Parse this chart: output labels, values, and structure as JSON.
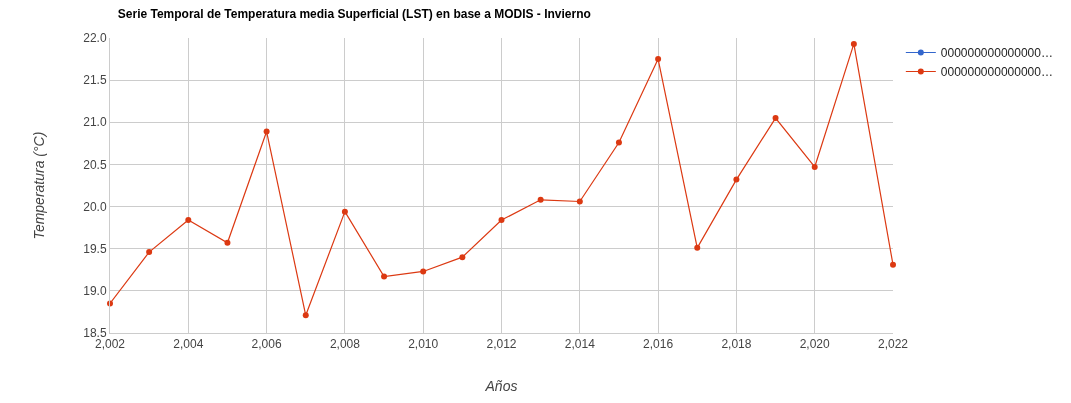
{
  "chart_data": {
    "type": "line",
    "title": "Serie Temporal de Temperatura media Superficial (LST) en base a MODIS - Invierno",
    "xlabel": "Años",
    "ylabel": "Temperatura (°C)",
    "x": [
      2002,
      2003,
      2004,
      2005,
      2006,
      2007,
      2008,
      2009,
      2010,
      2011,
      2012,
      2013,
      2014,
      2015,
      2016,
      2017,
      2018,
      2019,
      2020,
      2021,
      2022
    ],
    "series": [
      {
        "name": "000000000000000…",
        "color": "#3366cc",
        "values": [
          null,
          null,
          null,
          null,
          null,
          null,
          null,
          null,
          null,
          null,
          null,
          null,
          null,
          null,
          null,
          null,
          null,
          null,
          null,
          null,
          null
        ]
      },
      {
        "name": "000000000000000…",
        "color": "#dc3912",
        "values": [
          18.85,
          19.46,
          19.84,
          19.57,
          20.89,
          18.71,
          19.94,
          19.17,
          19.23,
          19.4,
          19.84,
          20.08,
          20.06,
          20.76,
          21.75,
          19.51,
          20.32,
          21.05,
          20.47,
          21.93,
          19.31
        ]
      }
    ],
    "xlim": [
      2002,
      2022
    ],
    "xticks": [
      {
        "value": 2002,
        "label": "2,002"
      },
      {
        "value": 2004,
        "label": "2,004"
      },
      {
        "value": 2006,
        "label": "2,006"
      },
      {
        "value": 2008,
        "label": "2,008"
      },
      {
        "value": 2010,
        "label": "2,010"
      },
      {
        "value": 2012,
        "label": "2,012"
      },
      {
        "value": 2014,
        "label": "2,014"
      },
      {
        "value": 2016,
        "label": "2,016"
      },
      {
        "value": 2018,
        "label": "2,018"
      },
      {
        "value": 2020,
        "label": "2,020"
      },
      {
        "value": 2022,
        "label": "2,022"
      }
    ],
    "ylim": [
      18.5,
      22.0
    ],
    "yticks": [
      {
        "value": 18.5,
        "label": "18.5"
      },
      {
        "value": 19.0,
        "label": "19.0"
      },
      {
        "value": 19.5,
        "label": "19.5"
      },
      {
        "value": 20.0,
        "label": "20.0"
      },
      {
        "value": 20.5,
        "label": "20.5"
      },
      {
        "value": 21.0,
        "label": "21.0"
      },
      {
        "value": 21.5,
        "label": "21.5"
      },
      {
        "value": 22.0,
        "label": "22.0"
      }
    ],
    "grid": true,
    "legend": "top right",
    "marker": "circle",
    "line_style": "solid"
  }
}
